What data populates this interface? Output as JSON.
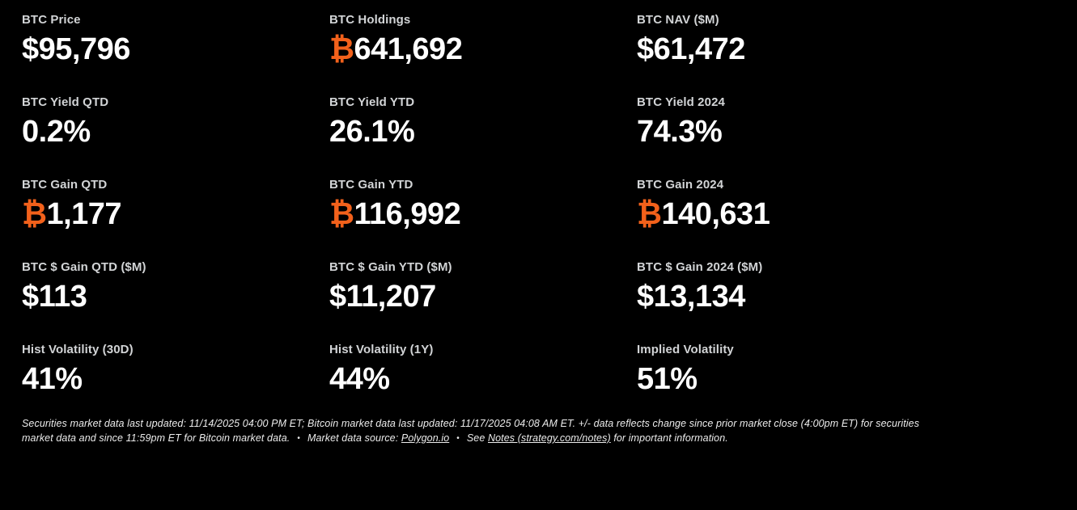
{
  "theme": {
    "background": "#000000",
    "label_color": "#d2d4d6",
    "value_color": "#ffffff",
    "bitcoin_orange": "#f2611b",
    "footnote_color": "#ececec"
  },
  "metrics": [
    {
      "label": "BTC Price",
      "currency": "$",
      "value": "95,796"
    },
    {
      "label": "BTC Holdings",
      "currency": "₿",
      "value": "641,692"
    },
    {
      "label": "BTC NAV ($M)",
      "currency": "$",
      "value": "61,472"
    },
    {
      "label": "BTC Yield QTD",
      "currency": "",
      "value": "0.2%"
    },
    {
      "label": "BTC Yield YTD",
      "currency": "",
      "value": "26.1%"
    },
    {
      "label": "BTC Yield 2024",
      "currency": "",
      "value": "74.3%"
    },
    {
      "label": "BTC Gain QTD",
      "currency": "₿",
      "value": "1,177"
    },
    {
      "label": "BTC Gain YTD",
      "currency": "₿",
      "value": "116,992"
    },
    {
      "label": "BTC Gain 2024",
      "currency": "₿",
      "value": "140,631"
    },
    {
      "label": "BTC $ Gain QTD ($M)",
      "currency": "$",
      "value": "113"
    },
    {
      "label": "BTC $ Gain YTD ($M)",
      "currency": "$",
      "value": "11,207"
    },
    {
      "label": "BTC $ Gain 2024 ($M)",
      "currency": "$",
      "value": "13,134"
    },
    {
      "label": "Hist Volatility (30D)",
      "currency": "",
      "value": "41%"
    },
    {
      "label": "Hist Volatility (1Y)",
      "currency": "",
      "value": "44%"
    },
    {
      "label": "Implied Volatility",
      "currency": "",
      "value": "51%"
    }
  ],
  "footer": {
    "disclaimer": "Securities market data last updated: 11/14/2025 04:00 PM ET; Bitcoin market data last updated: 11/17/2025 04:08 AM ET. +/- data reflects change since prior market close (4:00pm ET) for securities market data and since 11:59pm ET for Bitcoin market data.",
    "bullet": "•",
    "source_label": "Market data source:",
    "source_link": "Polygon.io",
    "see_label": "See",
    "notes_link": "Notes (strategy.com/notes)",
    "notes_suffix": "for important information."
  }
}
